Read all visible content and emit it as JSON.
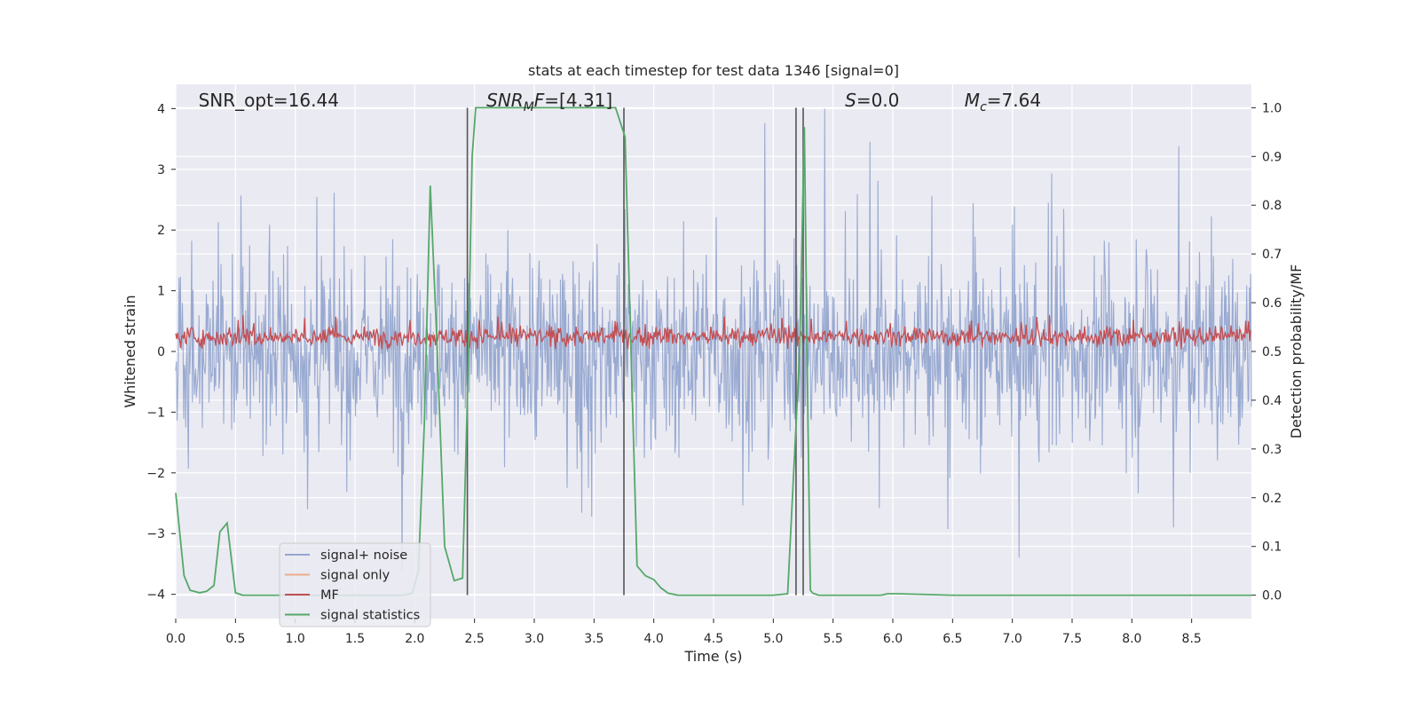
{
  "chart_data": {
    "type": "line",
    "title": "stats at each timestep for test data 1346 [signal=0]",
    "xlabel": "Time (s)",
    "ylabel": "Whitened strain",
    "y2label": "Detection probability/MF",
    "xlim": [
      0,
      9.0
    ],
    "ylim": [
      -4.4,
      4.4
    ],
    "y2lim": [
      -0.048,
      1.048
    ],
    "grid": true,
    "x_ticks": [
      0,
      0.5,
      1.0,
      1.5,
      2.0,
      2.5,
      3.0,
      3.5,
      4.0,
      4.5,
      5.0,
      5.5,
      6.0,
      6.5,
      7.0,
      7.5,
      8.0,
      8.5
    ],
    "x_tick_labels": [
      "0.0",
      "0.5",
      "1.0",
      "1.5",
      "2.0",
      "2.5",
      "3.0",
      "3.5",
      "4.0",
      "4.5",
      "5.0",
      "5.5",
      "6.0",
      "6.5",
      "7.0",
      "7.5",
      "8.0",
      "8.5"
    ],
    "y_ticks": [
      -4,
      -3,
      -2,
      -1,
      0,
      1,
      2,
      3,
      4
    ],
    "y_tick_labels": [
      "−4",
      "−3",
      "−2",
      "−1",
      "0",
      "1",
      "2",
      "3",
      "4"
    ],
    "y2_ticks": [
      0.0,
      0.1,
      0.2,
      0.3,
      0.4,
      0.5,
      0.6,
      0.7,
      0.8,
      0.9,
      1.0
    ],
    "y2_tick_labels": [
      "0.0",
      "0.1",
      "0.2",
      "0.3",
      "0.4",
      "0.5",
      "0.6",
      "0.7",
      "0.8",
      "0.9",
      "1.0"
    ],
    "annotations": [
      {
        "name": "snr-opt",
        "text": "SNR_opt=16.44",
        "x": 0.19
      },
      {
        "name": "snr-mf",
        "text": "SNR_MF=[4.31]",
        "x": 2.6
      },
      {
        "name": "s-value",
        "text": "S=0.0",
        "x": 5.6
      },
      {
        "name": "mc-value",
        "text": "M_c=7.64",
        "x": 6.6
      }
    ],
    "vertical_lines": [
      2.44,
      3.75,
      5.19,
      5.25
    ],
    "legend": {
      "placement": "lower-left",
      "entries": [
        {
          "name": "signal+ noise",
          "color": "#95a7cf"
        },
        {
          "name": "signal only",
          "color": "#eeaa8c"
        },
        {
          "name": "MF",
          "color": "#c44e52"
        },
        {
          "name": "signal statistics",
          "color": "#55a868"
        }
      ]
    },
    "series": [
      {
        "name": "signal+ noise",
        "axis": "left",
        "color": "#95a7cf",
        "description": "whitened strain noise, roughly symmetric about 0 with excursions to about ±4",
        "amplitude_envelope": [
          -4.0,
          4.0
        ]
      },
      {
        "name": "signal only",
        "axis": "left",
        "color": "#eeaa8c",
        "values": []
      },
      {
        "name": "MF",
        "axis": "right",
        "color": "#c44e52",
        "description": "matched filter output fluctuating around 0.53",
        "range": [
          0.5,
          0.6
        ]
      },
      {
        "name": "signal statistics",
        "axis": "right",
        "color": "#55a868",
        "x": [
          0.0,
          0.07,
          0.12,
          0.2,
          0.26,
          0.32,
          0.37,
          0.43,
          0.5,
          0.56,
          0.6,
          1.0,
          1.5,
          1.9,
          1.98,
          2.03,
          2.08,
          2.13,
          2.18,
          2.25,
          2.33,
          2.4,
          2.44,
          2.48,
          2.51,
          2.6,
          3.0,
          3.5,
          3.68,
          3.76,
          3.86,
          3.93,
          4.0,
          4.06,
          4.12,
          4.2,
          4.5,
          5.0,
          5.12,
          5.18,
          5.22,
          5.26,
          5.29,
          5.31,
          5.33,
          5.38,
          5.5,
          5.9,
          5.96,
          6.04,
          6.5,
          7.0,
          8.0,
          9.0
        ],
        "values": [
          0.21,
          0.04,
          0.01,
          0.005,
          0.008,
          0.02,
          0.13,
          0.148,
          0.005,
          0.0,
          0.0,
          0.0,
          0.0,
          0.0,
          0.004,
          0.05,
          0.35,
          0.84,
          0.55,
          0.1,
          0.03,
          0.035,
          0.4,
          0.9,
          1.0,
          1.0,
          1.0,
          1.0,
          1.0,
          0.94,
          0.06,
          0.04,
          0.032,
          0.015,
          0.004,
          0.0,
          0.0,
          0.0,
          0.003,
          0.3,
          0.5,
          0.96,
          0.35,
          0.01,
          0.004,
          0.0,
          0.0,
          0.0,
          0.003,
          0.003,
          0.0,
          0.0,
          0.0,
          0.0
        ]
      }
    ]
  }
}
